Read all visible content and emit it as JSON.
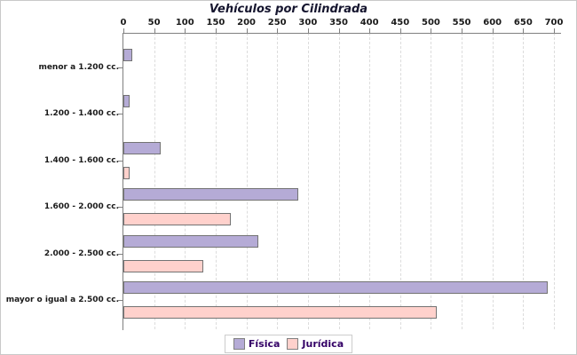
{
  "title": "Vehículos por Cilindrada",
  "chart_data": {
    "type": "bar",
    "orientation": "horizontal",
    "title": "Vehículos por Cilindrada",
    "categories": [
      "menor a 1.200 cc.",
      "1.200 - 1.400 cc.",
      "1.400 - 1.600 cc.",
      "1.600 - 2.000 cc.",
      "2.000 - 2.500 cc.",
      "mayor o igual a 2.500 cc."
    ],
    "series": [
      {
        "name": "Física",
        "color": "#b5abd6",
        "values": [
          15,
          10,
          60,
          285,
          220,
          690
        ]
      },
      {
        "name": "Jurídica",
        "color": "#ffd1cc",
        "values": [
          0,
          0,
          10,
          175,
          130,
          510
        ]
      }
    ],
    "xlim": [
      0,
      700
    ],
    "xticks": [
      0,
      50,
      100,
      150,
      200,
      250,
      300,
      350,
      400,
      450,
      500,
      550,
      600,
      650,
      700
    ],
    "grid": "dashed-vertical",
    "legend_position": "bottom-center"
  },
  "legend": {
    "items": [
      {
        "label": "Física",
        "color": "#b5abd6"
      },
      {
        "label": "Jurídica",
        "color": "#ffd1cc"
      }
    ]
  },
  "colors": {
    "background": "#ffffff",
    "frame_border": "#c9c9c9",
    "axis": "#808080",
    "gridline": "#dcdcdc",
    "bar_border": "#737373",
    "fisica_fill": "#b5abd6",
    "juridica_fill": "#ffd1cc",
    "title_text": "#15152e",
    "axis_text": "#1a1a1a",
    "legend_text": "#330066",
    "legend_border": "#cccccc"
  }
}
